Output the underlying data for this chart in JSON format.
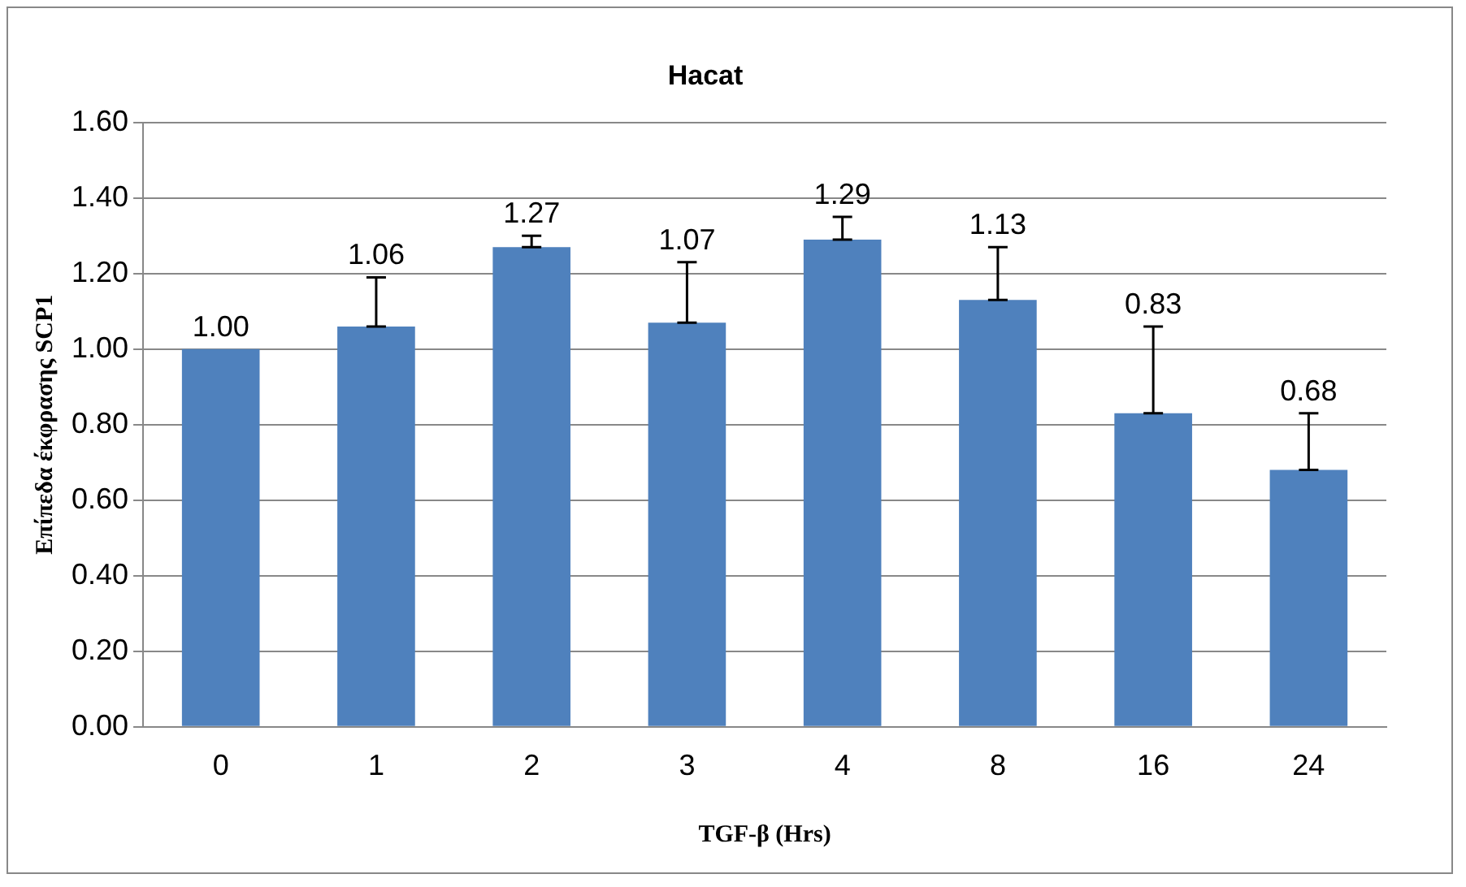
{
  "chart_data": {
    "type": "bar",
    "title": "Hacat",
    "xlabel": "TGF-β (Hrs)",
    "ylabel": "Επίπεδα έκφρασης SCP1",
    "categories": [
      "0",
      "1",
      "2",
      "3",
      "4",
      "8",
      "16",
      "24"
    ],
    "values": [
      1.0,
      1.06,
      1.27,
      1.07,
      1.29,
      1.13,
      0.83,
      0.68
    ],
    "value_labels": [
      "1.00",
      "1.06",
      "1.27",
      "1.07",
      "1.29",
      "1.13",
      "0.83",
      "0.68"
    ],
    "errors": [
      null,
      [
        1.06,
        1.19
      ],
      [
        1.27,
        1.3
      ],
      [
        1.07,
        1.23
      ],
      [
        1.29,
        1.35
      ],
      [
        1.13,
        1.27
      ],
      [
        0.83,
        1.06
      ],
      [
        0.68,
        0.83
      ]
    ],
    "color": "#4f81bd",
    "ylim": [
      0,
      1.6
    ],
    "yticks": [
      {
        "value": 0,
        "label": "0.00"
      },
      {
        "value": 0.2,
        "label": "0.20"
      },
      {
        "value": 0.4,
        "label": "0.40"
      },
      {
        "value": 0.6,
        "label": "0.60"
      },
      {
        "value": 0.8,
        "label": "0.80"
      },
      {
        "value": 1.0,
        "label": "1.00"
      },
      {
        "value": 1.2,
        "label": "1.20"
      },
      {
        "value": 1.4,
        "label": "1.40"
      },
      {
        "value": 1.6,
        "label": "1.60"
      }
    ],
    "grid": "y",
    "legend": false
  }
}
